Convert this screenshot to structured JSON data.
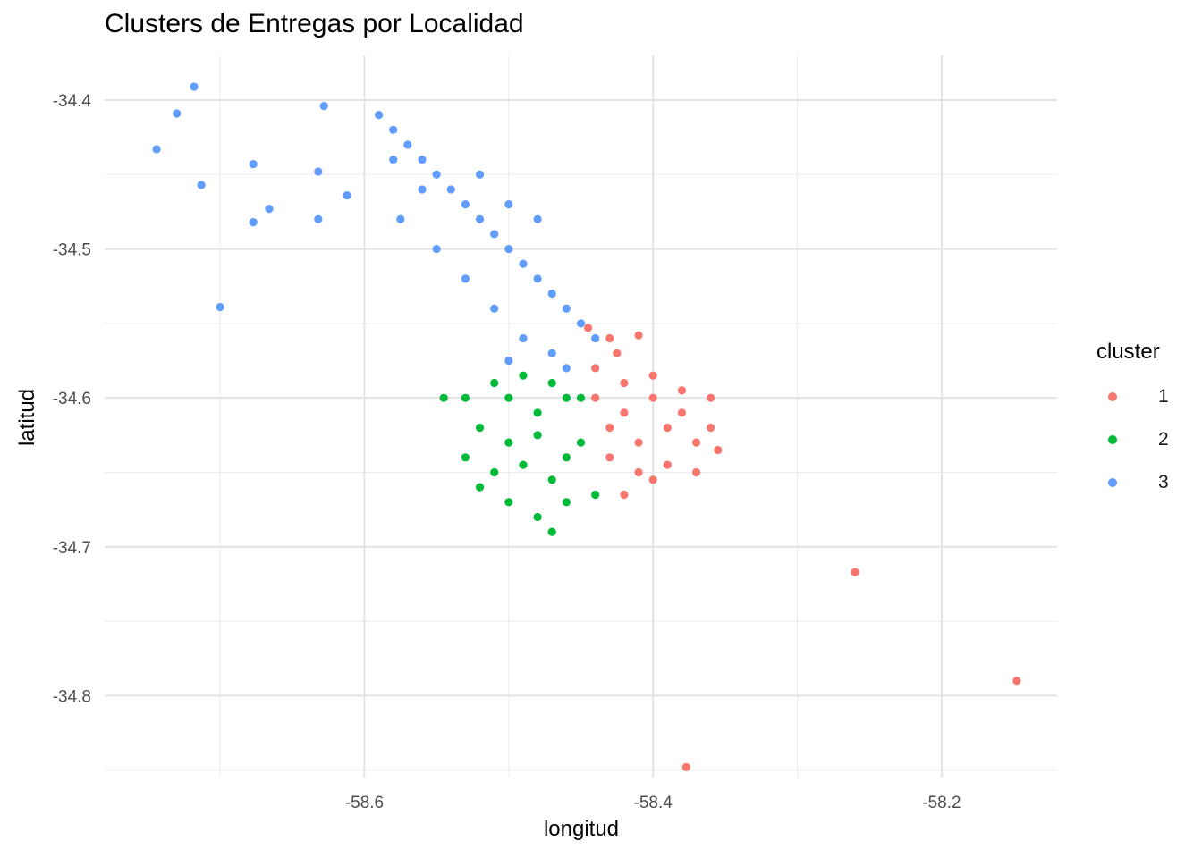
{
  "chart_data": {
    "type": "scatter",
    "title": "Clusters de Entregas por Localidad",
    "xlabel": "longitud",
    "ylabel": "latitud",
    "xlim": [
      -58.78,
      -58.12
    ],
    "ylim": [
      -34.855,
      -34.37
    ],
    "x_ticks": [
      -58.6,
      -58.4,
      -58.2
    ],
    "y_ticks": [
      -34.4,
      -34.5,
      -34.6,
      -34.7,
      -34.8
    ],
    "x_tick_labels": [
      "-58.6",
      "-58.4",
      "-58.2"
    ],
    "y_tick_labels": [
      "-34.4",
      "-34.5",
      "-34.6",
      "-34.7",
      "-34.8"
    ],
    "grid": true,
    "legend": {
      "title": "cluster",
      "position": "right"
    },
    "series": [
      {
        "name": "1",
        "color": "#F8766D",
        "points": [
          [
            -58.44,
            -34.6
          ],
          [
            -58.42,
            -34.61
          ],
          [
            -58.4,
            -34.6
          ],
          [
            -58.38,
            -34.61
          ],
          [
            -58.36,
            -34.62
          ],
          [
            -58.43,
            -34.62
          ],
          [
            -58.41,
            -34.63
          ],
          [
            -58.39,
            -34.62
          ],
          [
            -58.37,
            -34.63
          ],
          [
            -58.355,
            -34.635
          ],
          [
            -58.44,
            -34.58
          ],
          [
            -58.42,
            -34.59
          ],
          [
            -58.4,
            -34.585
          ],
          [
            -58.38,
            -34.595
          ],
          [
            -58.36,
            -34.6
          ],
          [
            -58.43,
            -34.64
          ],
          [
            -58.41,
            -34.65
          ],
          [
            -58.39,
            -34.645
          ],
          [
            -58.37,
            -34.65
          ],
          [
            -58.425,
            -34.57
          ],
          [
            -58.43,
            -34.56
          ],
          [
            -58.41,
            -34.558
          ],
          [
            -58.445,
            -34.553
          ],
          [
            -58.42,
            -34.665
          ],
          [
            -58.4,
            -34.655
          ],
          [
            -58.26,
            -34.717
          ],
          [
            -58.148,
            -34.79
          ],
          [
            -58.377,
            -34.848
          ]
        ]
      },
      {
        "name": "2",
        "color": "#00BA38",
        "points": [
          [
            -58.5,
            -34.6
          ],
          [
            -58.48,
            -34.61
          ],
          [
            -58.46,
            -34.6
          ],
          [
            -58.52,
            -34.62
          ],
          [
            -58.5,
            -34.63
          ],
          [
            -58.48,
            -34.625
          ],
          [
            -58.46,
            -34.64
          ],
          [
            -58.53,
            -34.64
          ],
          [
            -58.51,
            -34.65
          ],
          [
            -58.49,
            -34.645
          ],
          [
            -58.47,
            -34.655
          ],
          [
            -58.45,
            -34.63
          ],
          [
            -58.51,
            -34.59
          ],
          [
            -58.49,
            -34.585
          ],
          [
            -58.47,
            -34.59
          ],
          [
            -58.45,
            -34.6
          ],
          [
            -58.53,
            -34.6
          ],
          [
            -58.52,
            -34.66
          ],
          [
            -58.5,
            -34.67
          ],
          [
            -58.48,
            -34.68
          ],
          [
            -58.47,
            -34.69
          ],
          [
            -58.46,
            -34.67
          ],
          [
            -58.44,
            -34.665
          ],
          [
            -58.545,
            -34.6
          ]
        ]
      },
      {
        "name": "3",
        "color": "#619CFF",
        "points": [
          [
            -58.59,
            -34.41
          ],
          [
            -58.58,
            -34.42
          ],
          [
            -58.57,
            -34.43
          ],
          [
            -58.56,
            -34.44
          ],
          [
            -58.55,
            -34.45
          ],
          [
            -58.54,
            -34.46
          ],
          [
            -58.53,
            -34.47
          ],
          [
            -58.52,
            -34.48
          ],
          [
            -58.51,
            -34.49
          ],
          [
            -58.5,
            -34.5
          ],
          [
            -58.49,
            -34.51
          ],
          [
            -58.48,
            -34.52
          ],
          [
            -58.47,
            -34.53
          ],
          [
            -58.46,
            -34.54
          ],
          [
            -58.45,
            -34.55
          ],
          [
            -58.44,
            -34.56
          ],
          [
            -58.47,
            -34.57
          ],
          [
            -58.49,
            -34.56
          ],
          [
            -58.51,
            -34.54
          ],
          [
            -58.53,
            -34.52
          ],
          [
            -58.55,
            -34.5
          ],
          [
            -58.56,
            -34.46
          ],
          [
            -58.52,
            -34.45
          ],
          [
            -58.5,
            -34.47
          ],
          [
            -58.48,
            -34.48
          ],
          [
            -58.58,
            -34.44
          ],
          [
            -58.575,
            -34.48
          ],
          [
            -58.46,
            -34.58
          ],
          [
            -58.5,
            -34.575
          ],
          [
            -58.718,
            -34.391
          ],
          [
            -58.744,
            -34.433
          ],
          [
            -58.73,
            -34.409
          ],
          [
            -58.713,
            -34.457
          ],
          [
            -58.677,
            -34.443
          ],
          [
            -58.666,
            -34.473
          ],
          [
            -58.677,
            -34.482
          ],
          [
            -58.632,
            -34.448
          ],
          [
            -58.632,
            -34.48
          ],
          [
            -58.612,
            -34.464
          ],
          [
            -58.628,
            -34.404
          ],
          [
            -58.7,
            -34.539
          ]
        ]
      }
    ]
  }
}
